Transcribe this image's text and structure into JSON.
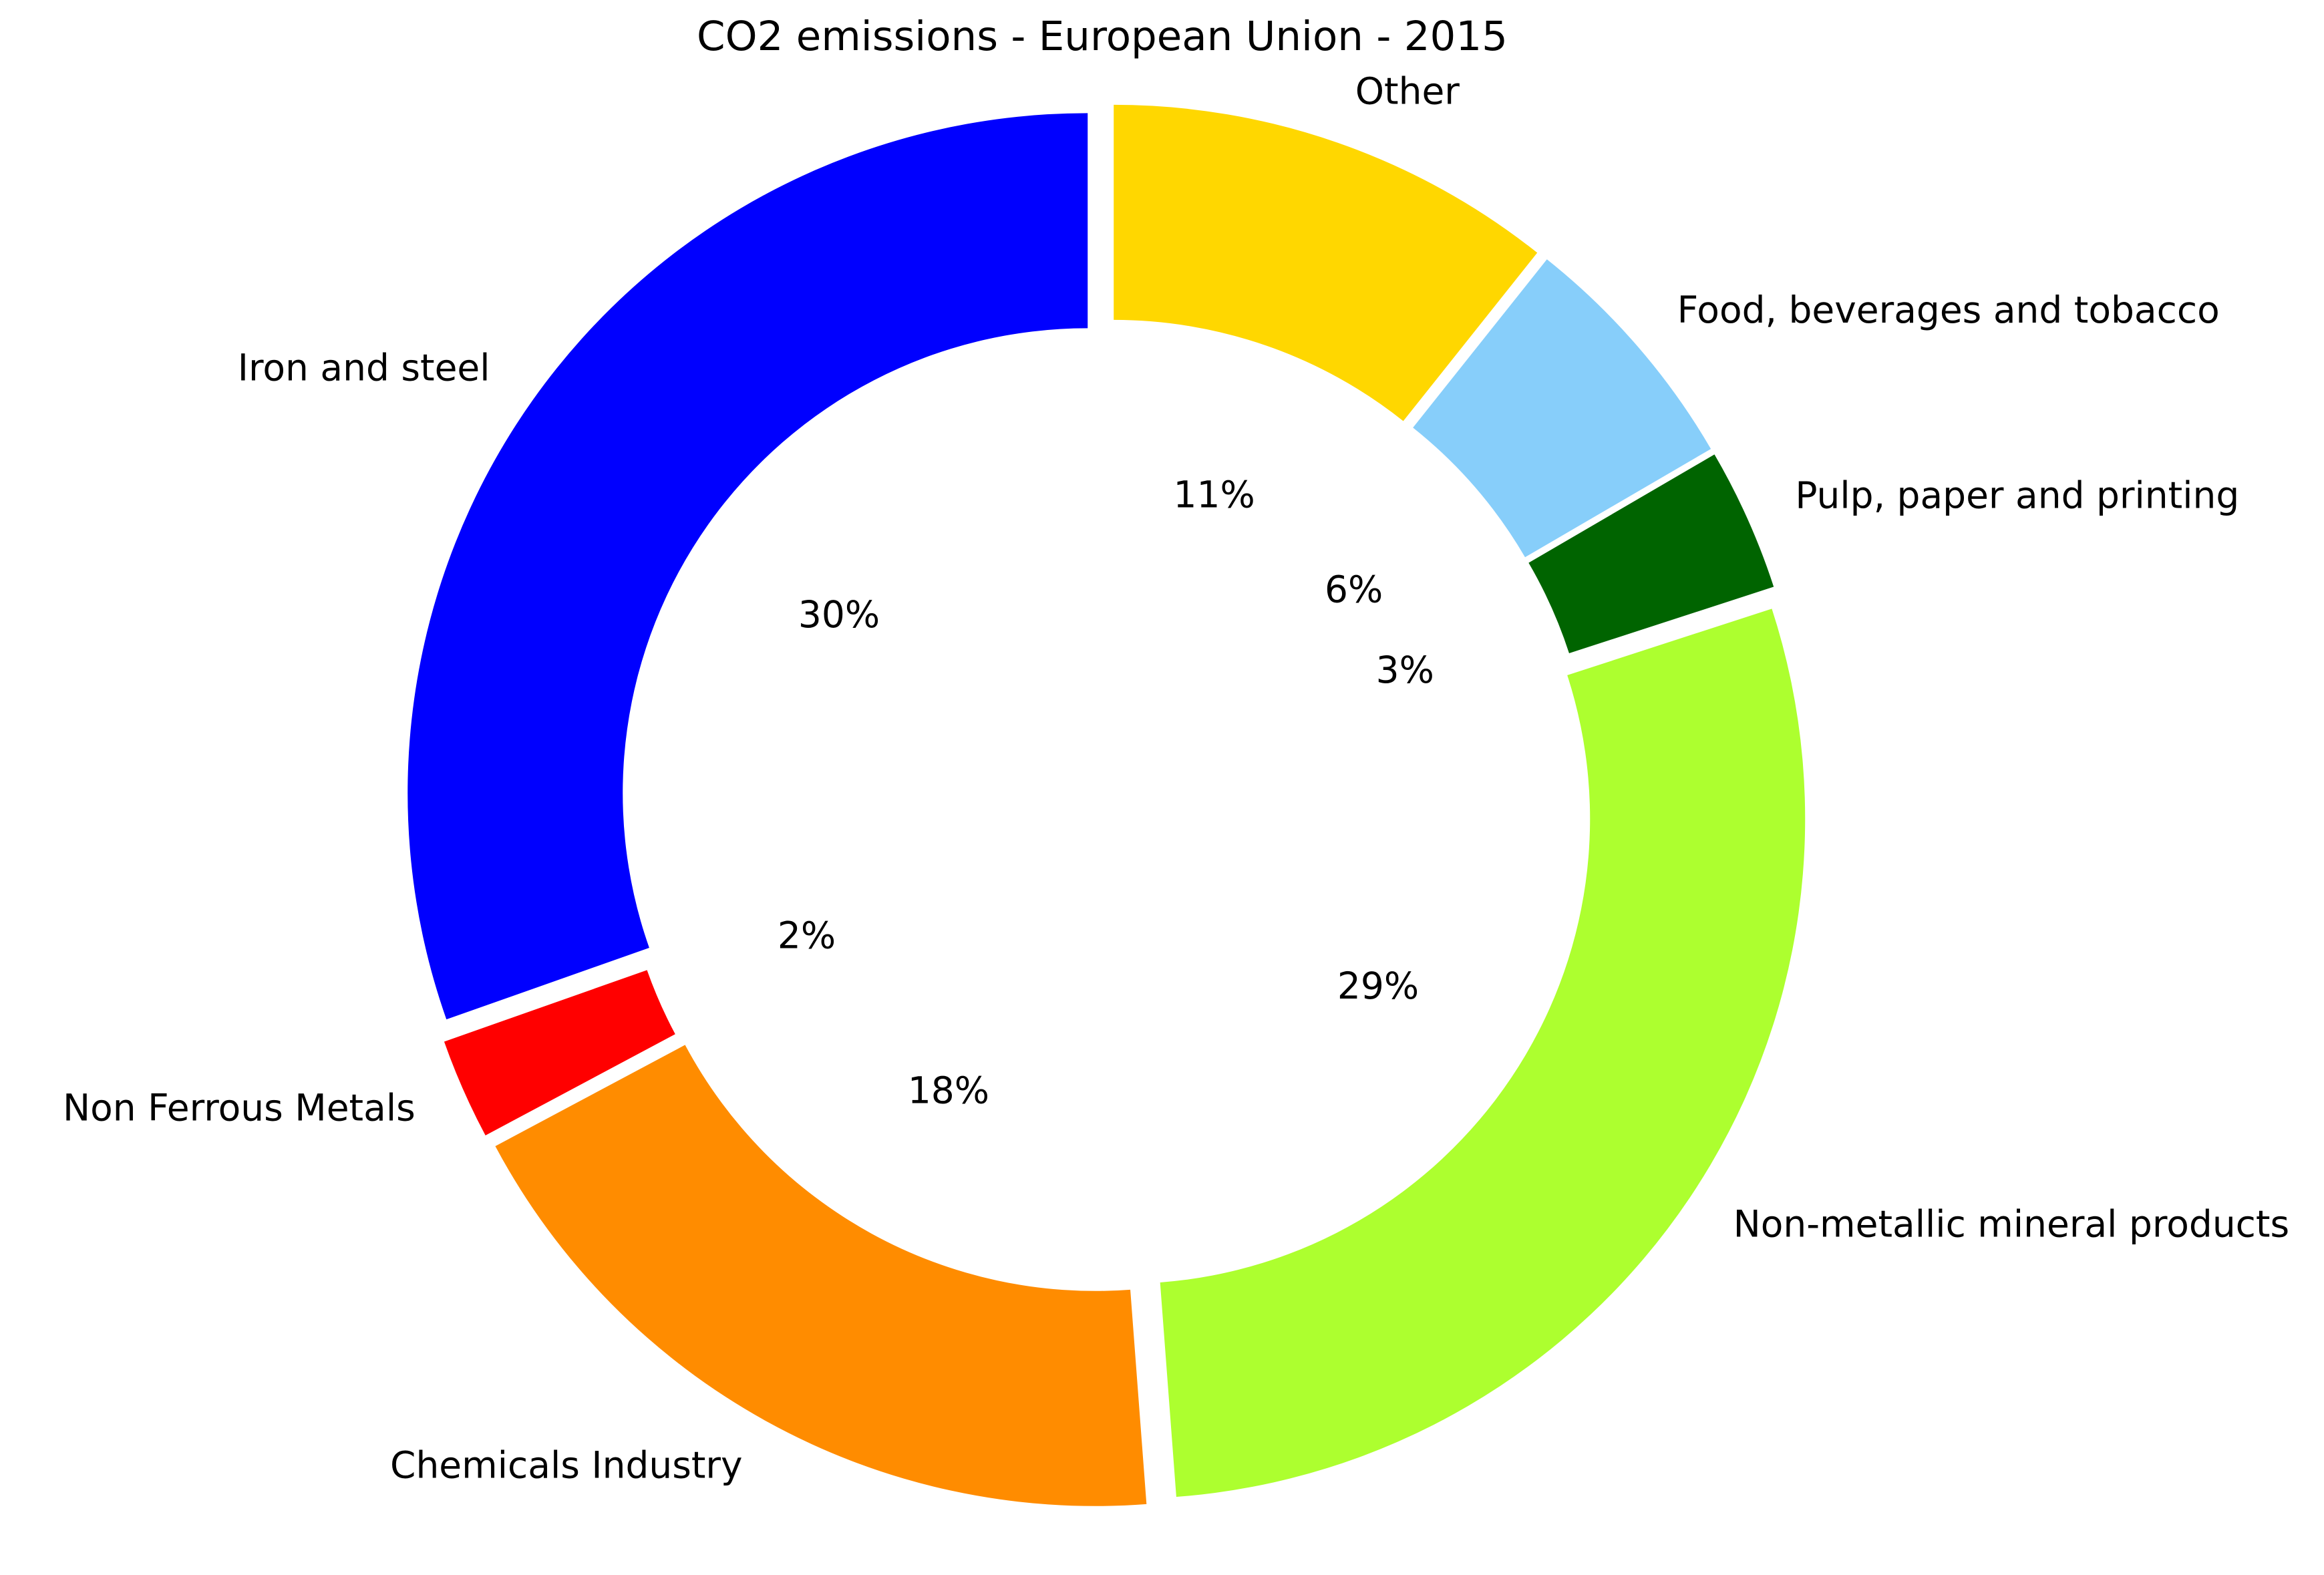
{
  "chart_data": {
    "type": "pie",
    "variant": "donut",
    "title": "CO2 emissions - European Union - 2015",
    "start_angle_deg": 90,
    "direction": "counterclockwise",
    "legend": "none",
    "categories": [
      "Iron and steel",
      "Non Ferrous Metals",
      "Chemicals Industry",
      "Non-metallic mineral products",
      "Pulp, paper and printing",
      "Food, beverages and tobacco",
      "Other"
    ],
    "values": [
      30.4,
      2.4,
      18.4,
      28.8,
      3.4,
      5.9,
      10.7
    ],
    "percent_labels": [
      "30%",
      "2%",
      "18%",
      "29%",
      "3%",
      "6%",
      "11%"
    ],
    "colors": [
      "#0000ff",
      "#ff0000",
      "#ff8c00",
      "#adff2f",
      "#006400",
      "#87cefa",
      "#ffd700"
    ]
  }
}
